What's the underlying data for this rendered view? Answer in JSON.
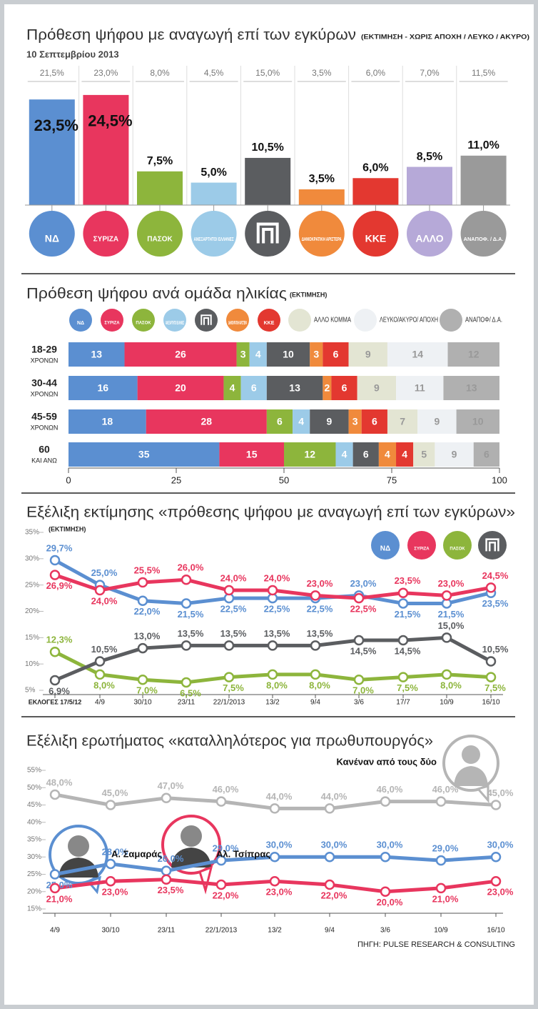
{
  "chart_data": [
    {
      "type": "bar",
      "title": "Πρόθεση ψήφου με αναγωγή επί των εγκύρων",
      "subtitle": "(ΕΚΤΙΜΗΣΗ - ΧΩΡΙΣ ΑΠΟΧΗ / ΛΕΥΚΟ / ΑΚΥΡΟ)",
      "date": "10 Σεπτεμβρίου 2013",
      "categories": [
        "ΝΔ",
        "ΣΥΡΙΖΑ",
        "ΠΑΣΟΚ",
        "ΑΝΕΞΑΡΤΗΤΟΙ ΕΛΛΗΝΕΣ",
        null,
        "ΔΗΜΟΚΡΑΤΙΚΗ ΑΡΙΣΤΕΡΑ",
        "ΚΚΕ",
        "ΑΛΛΟ",
        "ΑΝΑΠΟΦ. / Δ.Α."
      ],
      "values": [
        23.5,
        24.5,
        7.5,
        5.0,
        10.5,
        3.5,
        6.0,
        8.5,
        11.0
      ],
      "value_labels": [
        "23,5%",
        "24,5%",
        "7,5%",
        "5,0%",
        "10,5%",
        "3,5%",
        "6,0%",
        "8,5%",
        "11,0%"
      ],
      "previous_values": [
        21.5,
        23.0,
        8.0,
        4.5,
        15.0,
        3.5,
        6.0,
        7.0,
        11.5
      ],
      "previous_value_labels": [
        "21,5%",
        "23,0%",
        "8,0%",
        "4,5%",
        "15,0%",
        "3,5%",
        "6,0%",
        "7,0%",
        "11,5%"
      ],
      "colors": [
        "#5b8fd1",
        "#e8365e",
        "#8db53c",
        "#9ccbe8",
        "#5b5d60",
        "#f08a3c",
        "#e33830",
        "#b6a9d8",
        "#9a9a9a"
      ]
    },
    {
      "type": "bar",
      "horizontal": true,
      "stacked": true,
      "title": "Πρόθεση ψήφου ανά ομάδα ηλικίας",
      "subtitle": "(ΕΚΤΙΜΗΣΗ)",
      "categories": [
        "18-29",
        "30-44",
        "45-59",
        "60"
      ],
      "category_notes": [
        "ΧΡΟΝΩΝ",
        "ΧΡΟΝΩΝ",
        "ΧΡΟΝΩΝ",
        "ΚΑΙ ΑΝΩ"
      ],
      "series": [
        {
          "name": "ΝΔ",
          "color": "#5b8fd1",
          "values": [
            13,
            16,
            18,
            35
          ]
        },
        {
          "name": "ΣΥΡΙΖΑ",
          "color": "#e8365e",
          "values": [
            26,
            20,
            28,
            15
          ]
        },
        {
          "name": "ΠΑΣΟΚ",
          "color": "#8db53c",
          "values": [
            3,
            4,
            6,
            12
          ]
        },
        {
          "name": "ΑΝΕΞΑΡΤΗΤΟΙ ΕΛΛΗΝΕΣ",
          "color": "#9ccbe8",
          "values": [
            4,
            6,
            4,
            4
          ]
        },
        {
          "name": null,
          "color": "#5b5d60",
          "values": [
            10,
            13,
            9,
            6
          ]
        },
        {
          "name": "ΔΗΜΟΚΡΑΤΙΚΗ ΑΡΙΣΤΕΡΑ",
          "color": "#f08a3c",
          "values": [
            3,
            2,
            3,
            4
          ]
        },
        {
          "name": "ΚΚΕ",
          "color": "#e33830",
          "values": [
            6,
            6,
            6,
            4
          ]
        },
        {
          "name": "ΑΛΛΟ ΚΟΜΜΑ",
          "color": "#e3e5d3",
          "values": [
            9,
            9,
            7,
            5
          ]
        },
        {
          "name": "ΛΕΥΚΟ/ΑΚΥΡΟ/ ΑΠΟΧΗ",
          "color": "#eef1f4",
          "values": [
            14,
            11,
            9,
            9
          ]
        },
        {
          "name": "ΑΝΑΠΟΦ/ Δ.Α.",
          "color": "#b0b0b0",
          "values": [
            12,
            13,
            10,
            6
          ]
        }
      ],
      "xlim": [
        0,
        100
      ],
      "xticks": [
        0,
        25,
        50,
        75,
        100
      ]
    },
    {
      "type": "line",
      "title": "Εξέλιξη εκτίμησης «πρόθεσης ψήφου με αναγωγή επί των εγκύρων»",
      "subtitle": "(ΕΚΤΙΜΗΣΗ)",
      "categories": [
        "ΕΚΛΟΓΕΣ 17/5/12",
        "4/9",
        "30/10",
        "23/11",
        "22/1/2013",
        "13/2",
        "9/4",
        "3/6",
        "17/7",
        "10/9",
        "16/10"
      ],
      "series": [
        {
          "name": "ΝΔ",
          "color": "#5b8fd1",
          "values": [
            29.7,
            25.0,
            22.0,
            21.5,
            22.5,
            22.5,
            22.5,
            23.0,
            21.5,
            21.5,
            23.5
          ],
          "value_labels": [
            "29,7%",
            "25,0%",
            "22,0%",
            "21,5%",
            "22,5%",
            "22,5%",
            "22,5%",
            "23,0%",
            "21,5%",
            "21,5%",
            "23,5%"
          ]
        },
        {
          "name": "ΣΥΡΙΖΑ",
          "color": "#e8365e",
          "values": [
            26.9,
            24.0,
            25.5,
            26.0,
            24.0,
            24.0,
            23.0,
            22.5,
            23.5,
            23.0,
            24.5
          ],
          "value_labels": [
            "26,9%",
            "24,0%",
            "25,5%",
            "26,0%",
            "24,0%",
            "24,0%",
            "23,0%",
            "22,5%",
            "23,5%",
            "23,0%",
            "24,5%"
          ]
        },
        {
          "name": "ΠΑΣΟΚ",
          "color": "#8db53c",
          "values": [
            12.3,
            8.0,
            7.0,
            6.5,
            7.5,
            8.0,
            8.0,
            7.0,
            7.5,
            8.0,
            7.5
          ],
          "value_labels": [
            "12,3%",
            "8,0%",
            "7,0%",
            "6,5%",
            "7,5%",
            "8,0%",
            "8,0%",
            "7,0%",
            "7,5%",
            "8,0%",
            "7,5%"
          ]
        },
        {
          "name": null,
          "color": "#5b5d60",
          "values": [
            6.9,
            10.5,
            13.0,
            13.5,
            13.5,
            13.5,
            13.5,
            14.5,
            14.5,
            15.0,
            10.5
          ],
          "value_labels": [
            "6,9%",
            "10,5%",
            "13,0%",
            "13,5%",
            "13,5%",
            "13,5%",
            "13,5%",
            "14,5%",
            "14,5%",
            "15,0%",
            "10,5%"
          ]
        }
      ],
      "ylim": [
        5,
        35
      ],
      "yticks": [
        {
          "value": 5,
          "label": "5%"
        },
        {
          "value": 10,
          "label": "10%"
        },
        {
          "value": 15,
          "label": "15%"
        },
        {
          "value": 20,
          "label": "20%"
        },
        {
          "value": 25,
          "label": "25%"
        },
        {
          "value": 30,
          "label": "30%"
        },
        {
          "value": 35,
          "label": "35%"
        }
      ]
    },
    {
      "type": "line",
      "title": "Εξέλιξη ερωτήματος «καταλληλότερος για πρωθυπουργός»",
      "categories": [
        "4/9",
        "30/10",
        "23/11",
        "22/1/2013",
        "13/2",
        "9/4",
        "3/6",
        "10/9",
        "16/10"
      ],
      "series": [
        {
          "name": "Κανέναν από τους δύο",
          "color": "#b5b5b5",
          "values": [
            48,
            45,
            47,
            46,
            44,
            44,
            46,
            46,
            45
          ],
          "value_labels": [
            "48,0%",
            "45,0%",
            "47,0%",
            "46,0%",
            "44,0%",
            "44,0%",
            "46,0%",
            "46,0%",
            "45,0%"
          ]
        },
        {
          "name": "Α. Σαμαράς",
          "color": "#5b8fd1",
          "values": [
            25,
            28,
            26,
            29,
            30,
            30,
            30,
            29,
            30
          ],
          "value_labels": [
            "25,0%",
            "28,0%",
            "26,0%",
            "29,0%",
            "30,0%",
            "30,0%",
            "30,0%",
            "29,0%",
            "30,0%"
          ]
        },
        {
          "name": "Αλ. Τσίπρας",
          "color": "#e8365e",
          "values": [
            21,
            23,
            23.5,
            22,
            23,
            22,
            20,
            21,
            23
          ],
          "value_labels": [
            "21,0%",
            "23,0%",
            "23,5%",
            "22,0%",
            "23,0%",
            "22,0%",
            "20,0%",
            "21,0%",
            "23,0%"
          ]
        }
      ],
      "ylim": [
        15,
        55
      ],
      "yticks": [
        {
          "value": 15,
          "label": "15%"
        },
        {
          "value": 20,
          "label": "20%"
        },
        {
          "value": 25,
          "label": "25%"
        },
        {
          "value": 30,
          "label": "30%"
        },
        {
          "value": 35,
          "label": "35%"
        },
        {
          "value": 40,
          "label": "40%"
        },
        {
          "value": 45,
          "label": "45%"
        },
        {
          "value": 50,
          "label": "50%"
        },
        {
          "value": 55,
          "label": "55%"
        }
      ],
      "source": "ΠΗΓΗ: PULSE RESEARCH & CONSULTING"
    }
  ]
}
